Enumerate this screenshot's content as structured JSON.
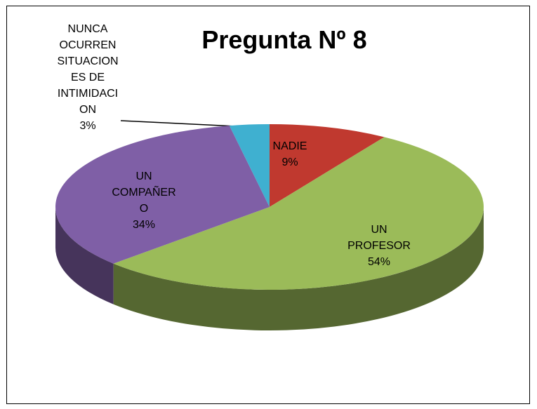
{
  "chart_data": {
    "type": "pie",
    "title": "Pregunta Nº 8",
    "categories": [
      "NADIE",
      "UN PROFESOR",
      "UN COMPAÑERO",
      "NUNCA OCURREN SITUACIONES DE INTIMIDACION"
    ],
    "values": [
      9,
      54,
      34,
      3
    ],
    "value_labels": [
      "9%",
      "54%",
      "34%",
      "3%"
    ],
    "colors": [
      "#c0392f",
      "#9bbb59",
      "#7f5fa6",
      "#3fb0d0"
    ]
  }
}
